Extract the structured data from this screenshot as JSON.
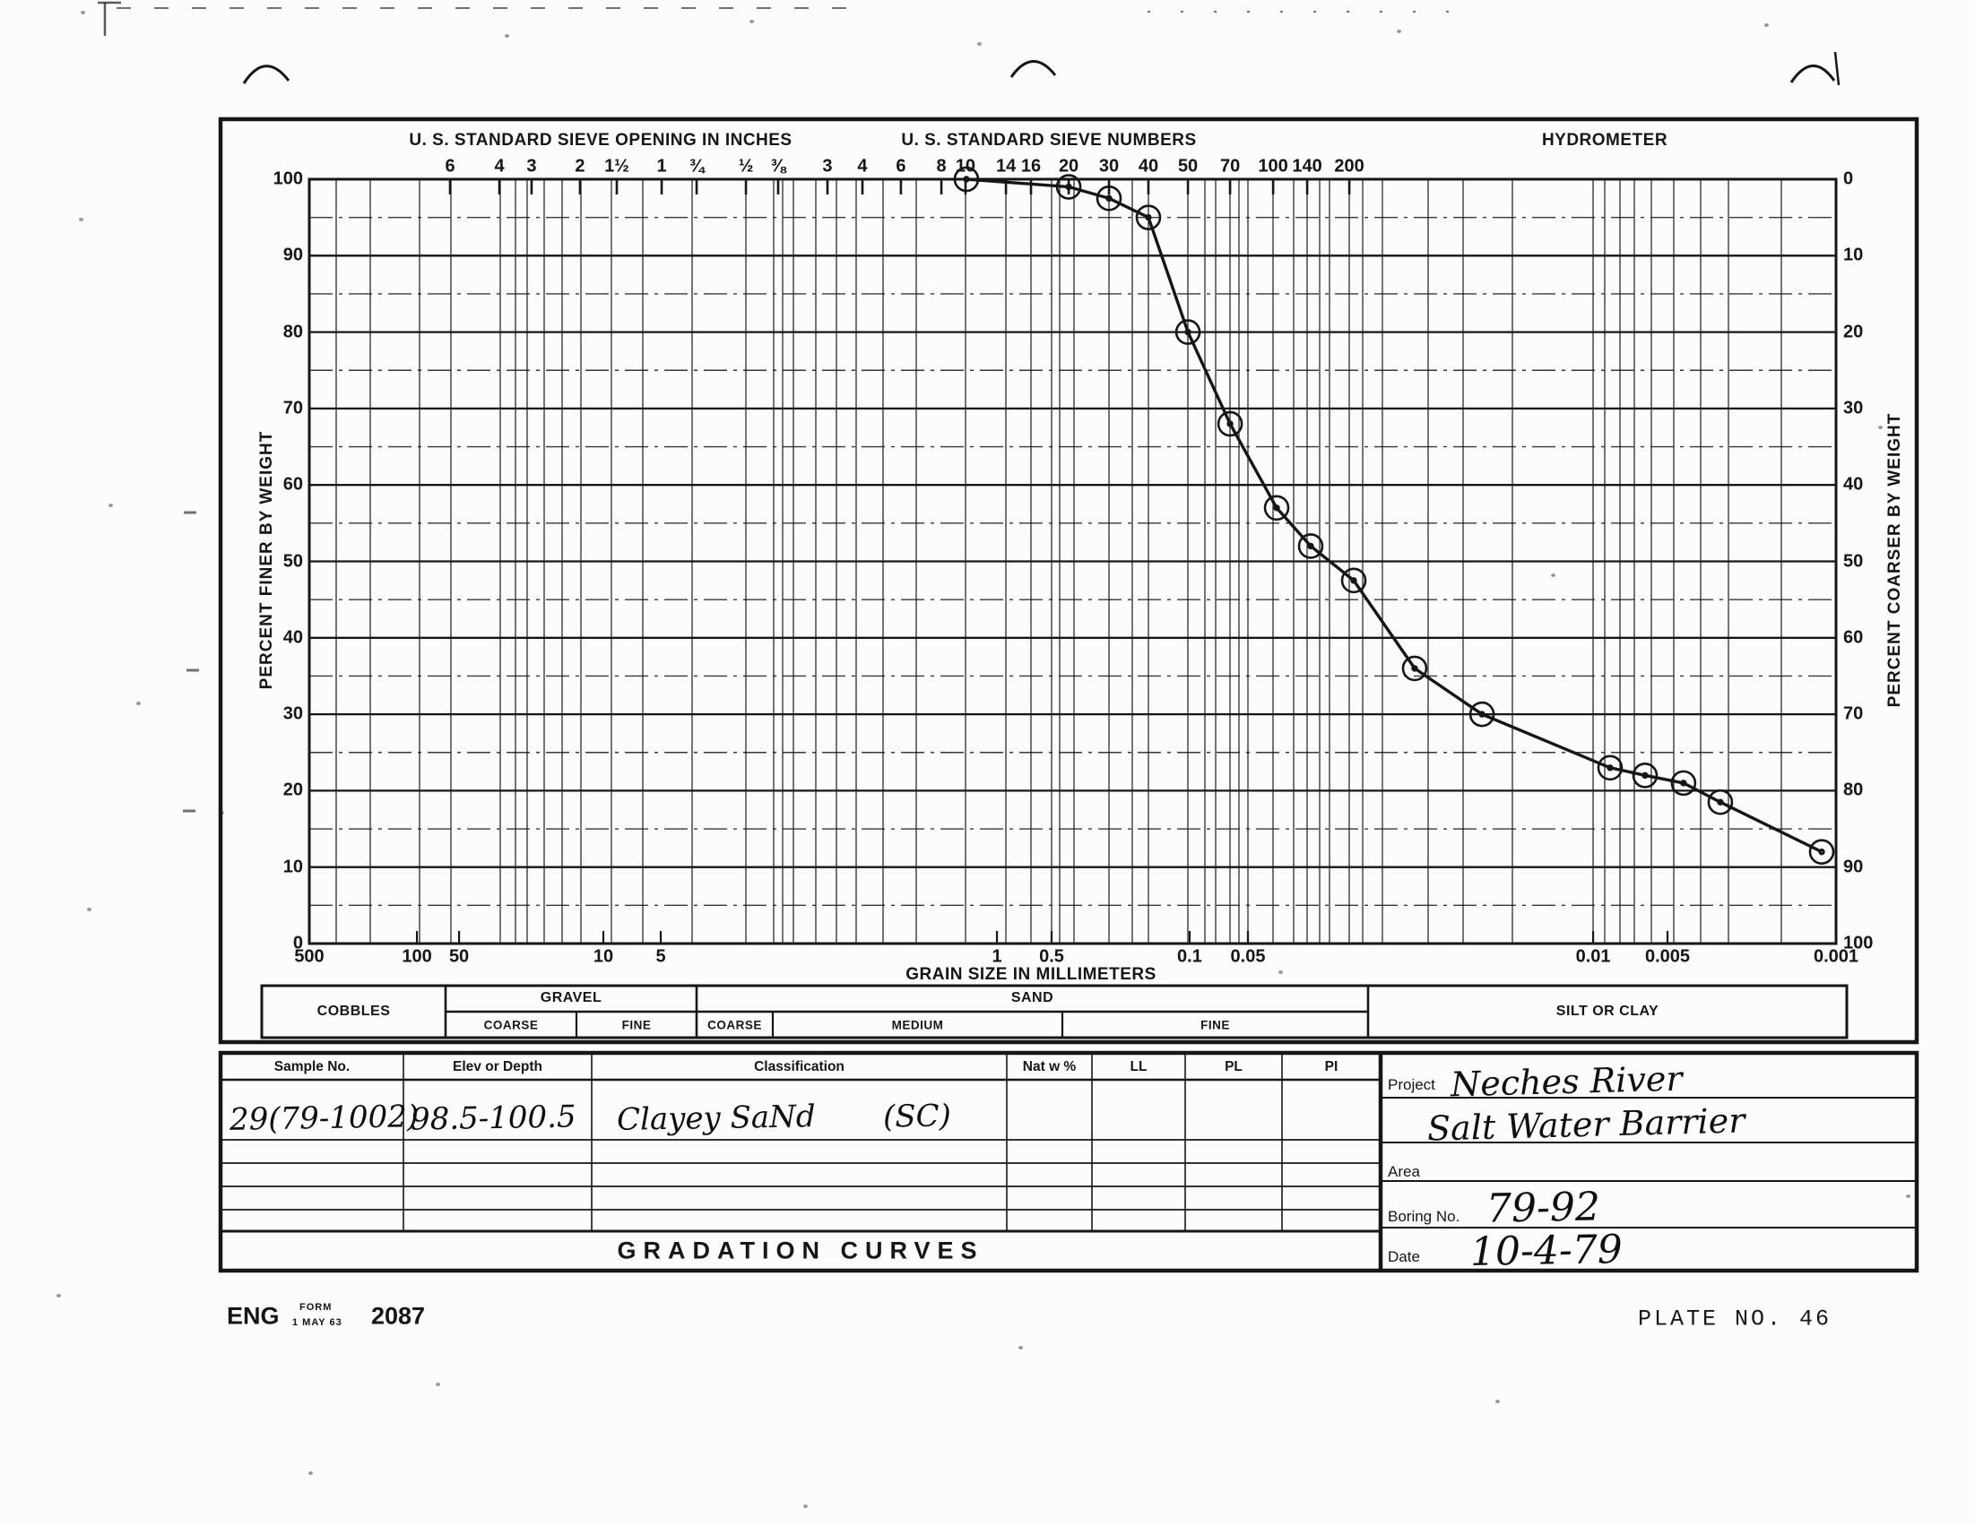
{
  "chart": {
    "headings": {
      "inches": "U. S. STANDARD SIEVE OPENING IN INCHES",
      "numbers": "U. S. STANDARD SIEVE NUMBERS",
      "hydrometer": "HYDROMETER"
    },
    "left_axis_label": "PERCENT FINER BY WEIGHT",
    "right_axis_label": "PERCENT COARSER BY WEIGHT",
    "bottom_axis_label": "GRAIN SIZE IN MILLIMETERS",
    "inches_ticks": [
      {
        "label": "6",
        "fx": 0.0922
      },
      {
        "label": "4",
        "fx": 0.1245
      },
      {
        "label": "3",
        "fx": 0.1456
      },
      {
        "label": "2",
        "fx": 0.1773
      },
      {
        "label": "1½",
        "fx": 0.2014
      },
      {
        "label": "1",
        "fx": 0.2308
      },
      {
        "label": "¾",
        "fx": 0.2537
      },
      {
        "label": "½",
        "fx": 0.286
      },
      {
        "label": "⅜",
        "fx": 0.3071
      }
    ],
    "number_ticks": [
      {
        "label": "3",
        "fx": 0.3394
      },
      {
        "label": "4",
        "fx": 0.3623
      },
      {
        "label": "6",
        "fx": 0.3875
      },
      {
        "label": "8",
        "fx": 0.414
      },
      {
        "label": "10",
        "fx": 0.4298
      },
      {
        "label": "14",
        "fx": 0.4563
      },
      {
        "label": "16",
        "fx": 0.4727
      },
      {
        "label": "20",
        "fx": 0.4974
      },
      {
        "label": "30",
        "fx": 0.5238
      },
      {
        "label": "40",
        "fx": 0.5496
      },
      {
        "label": "50",
        "fx": 0.5755
      },
      {
        "label": "70",
        "fx": 0.6031
      },
      {
        "label": "100",
        "fx": 0.6313
      },
      {
        "label": "140",
        "fx": 0.6536
      },
      {
        "label": "200",
        "fx": 0.6812
      }
    ],
    "bottom_ticks": [
      {
        "label": "500",
        "fx": 0.0
      },
      {
        "label": "100",
        "fx": 0.0705
      },
      {
        "label": "50",
        "fx": 0.0981
      },
      {
        "label": "10",
        "fx": 0.1926
      },
      {
        "label": "5",
        "fx": 0.2302
      },
      {
        "label": "1",
        "fx": 0.4504
      },
      {
        "label": "0.5",
        "fx": 0.4862
      },
      {
        "label": "0.1",
        "fx": 0.5766
      },
      {
        "label": "0.05",
        "fx": 0.6148
      },
      {
        "label": "0.01",
        "fx": 0.8409
      },
      {
        "label": "0.005",
        "fx": 0.8896
      },
      {
        "label": "0.001",
        "fx": 1.0
      }
    ],
    "left_percent_labels": [
      "100",
      "90",
      "80",
      "70",
      "60",
      "50",
      "40",
      "30",
      "20",
      "10",
      "0"
    ],
    "right_percent_labels": [
      "0",
      "10",
      "20",
      "30",
      "40",
      "50",
      "60",
      "70",
      "80",
      "90",
      "100"
    ]
  },
  "chart_data": {
    "type": "line",
    "title": "GRADATION CURVES",
    "xlabel": "GRAIN SIZE IN MILLIMETERS",
    "ylabel": "PERCENT FINER BY WEIGHT",
    "x_scale": "log-descending",
    "x_ticks_mm": [
      500,
      100,
      50,
      10,
      5,
      1,
      0.5,
      0.1,
      0.05,
      0.01,
      0.005,
      0.001
    ],
    "ylim": [
      0,
      100
    ],
    "grid": "on",
    "series": [
      {
        "name": "29(79-1002) Clayey SaNd (SC)",
        "points": [
          {
            "mm": 2.0,
            "pct": 100,
            "fx": 0.4304
          },
          {
            "mm": 0.85,
            "pct": 99,
            "fx": 0.4974
          },
          {
            "mm": 0.6,
            "pct": 97.5,
            "fx": 0.5238
          },
          {
            "mm": 0.425,
            "pct": 95,
            "fx": 0.5496
          },
          {
            "mm": 0.3,
            "pct": 80,
            "fx": 0.5755
          },
          {
            "mm": 0.212,
            "pct": 68,
            "fx": 0.6031
          },
          {
            "mm": 0.15,
            "pct": 57,
            "fx": 0.6336
          },
          {
            "mm": 0.106,
            "pct": 52,
            "fx": 0.6559
          },
          {
            "mm": 0.075,
            "pct": 47.5,
            "fx": 0.6841
          },
          {
            "mm": 0.023,
            "pct": 36,
            "fx": 0.724
          },
          {
            "mm": 0.017,
            "pct": 30,
            "fx": 0.7681
          },
          {
            "mm": 0.009,
            "pct": 23,
            "fx": 0.852
          },
          {
            "mm": 0.0065,
            "pct": 22,
            "fx": 0.8749
          },
          {
            "mm": 0.0045,
            "pct": 21,
            "fx": 0.9001
          },
          {
            "mm": 0.003,
            "pct": 18.5,
            "fx": 0.9242
          },
          {
            "mm": 0.0012,
            "pct": 12,
            "fx": 0.9906
          }
        ]
      }
    ]
  },
  "bands": {
    "cobbles": "COBBLES",
    "gravel": "GRAVEL",
    "sand": "SAND",
    "silt": "SILT OR CLAY",
    "gravel_sub": [
      "COARSE",
      "FINE"
    ],
    "sand_sub": [
      "COARSE",
      "MEDIUM",
      "FINE"
    ]
  },
  "table": {
    "headers": [
      "Sample No.",
      "Elev or Depth",
      "Classification",
      "Nat w %",
      "LL",
      "PL",
      "PI"
    ],
    "rows": [
      {
        "sample": "29(79-1002)",
        "elev": "98.5-100.5",
        "classification": "Clayey SaNd",
        "symbol": "(SC)",
        "nat_w": "",
        "ll": "",
        "pl": "",
        "pi": ""
      }
    ],
    "empty_row_count": 4
  },
  "project": {
    "project_label": "Project",
    "project_value_line1": "Neches River",
    "project_value_line2": "Salt Water Barrier",
    "area_label": "Area",
    "area_value": "",
    "boring_label": "Boring No.",
    "boring_value": "79-92",
    "date_label": "Date",
    "date_value": "10-4-79"
  },
  "title_bar": "GRADATION CURVES",
  "footer": {
    "eng": "ENG",
    "form_word": "FORM",
    "form_date": "1 MAY 63",
    "form_number": "2087",
    "plate": "PLATE NO. 46"
  }
}
